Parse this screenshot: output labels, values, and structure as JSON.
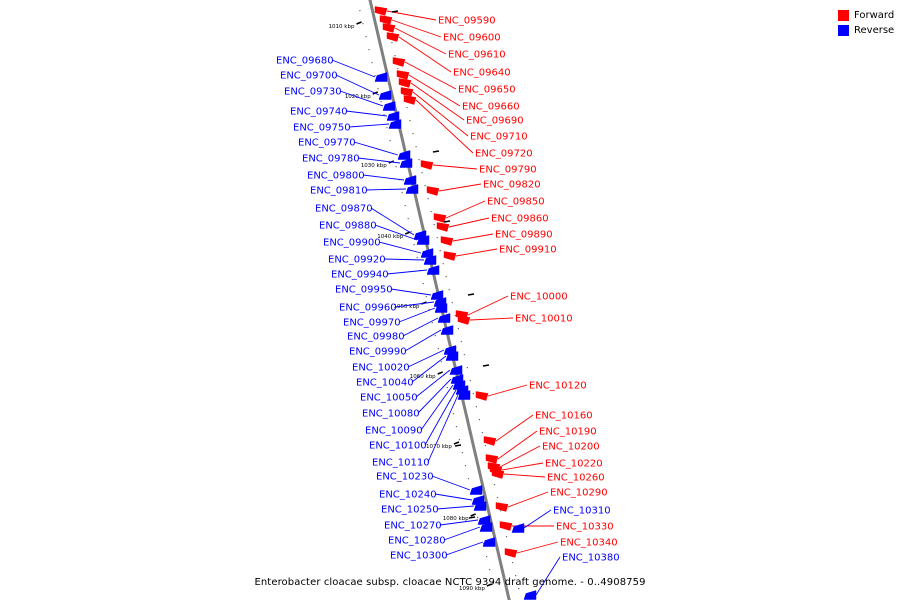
{
  "caption": "Enterobacter cloacae subsp. cloacae NCTC 9394 draft genome. - 0..4908759",
  "legend": [
    {
      "label": "Forward",
      "color": "#ff0000"
    },
    {
      "label": "Reverse",
      "color": "#0000ff"
    }
  ],
  "colors": {
    "forward": "#ff0000",
    "reverse": "#0000ff",
    "backbone": "#808080"
  },
  "scale_labels": [
    "1010 kbp",
    "1020 kbp",
    "1030 kbp",
    "1040 kbp",
    "1050 kbp",
    "1060 kbp",
    "1070 kbp",
    "1080 kbp",
    "1090 kbp"
  ],
  "forward_genes": [
    "ENC_09590",
    "ENC_09600",
    "ENC_09610",
    "ENC_09640",
    "ENC_09650",
    "ENC_09660",
    "ENC_09690",
    "ENC_09710",
    "ENC_09720",
    "ENC_09790",
    "ENC_09820",
    "ENC_09850",
    "ENC_09860",
    "ENC_09890",
    "ENC_09910",
    "ENC_10000",
    "ENC_10010",
    "ENC_10120",
    "ENC_10160",
    "ENC_10190",
    "ENC_10200",
    "ENC_10220",
    "ENC_10260",
    "ENC_10290",
    "ENC_10330",
    "ENC_10340"
  ],
  "reverse_genes": [
    "ENC_09680",
    "ENC_09700",
    "ENC_09730",
    "ENC_09740",
    "ENC_09750",
    "ENC_09770",
    "ENC_09780",
    "ENC_09800",
    "ENC_09810",
    "ENC_09870",
    "ENC_09880",
    "ENC_09900",
    "ENC_09920",
    "ENC_09940",
    "ENC_09950",
    "ENC_09960",
    "ENC_09970",
    "ENC_09980",
    "ENC_09990",
    "ENC_10020",
    "ENC_10040",
    "ENC_10050",
    "ENC_10080",
    "ENC_10090",
    "ENC_10100",
    "ENC_10110",
    "ENC_10230",
    "ENC_10240",
    "ENC_10250",
    "ENC_10270",
    "ENC_10280",
    "ENC_10300",
    "ENC_10310",
    "ENC_10380"
  ]
}
